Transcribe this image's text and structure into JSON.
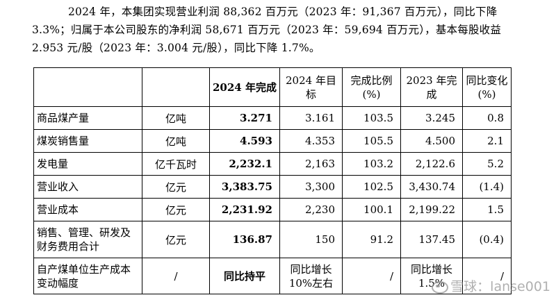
{
  "paragraph": "2024 年，本集团实现营业利润 88,362 百万元（2023 年：91,367 百万元），同比下降 3.3%；归属于本公司股东的净利润 58,671 百万元（2023 年：59,694 百万元），基本每股收益 2.953 元/股（2023 年：3.004 元/股），同比下降 1.7%。",
  "table": {
    "headers": [
      "",
      "",
      "2024 年完成",
      "2024 年目标",
      "完成比例(%)",
      "2023 年完成",
      "同比变化(%)"
    ],
    "rows": [
      {
        "item": "商品煤产量",
        "unit": "亿吨",
        "actual_2024": "3.271",
        "target_2024": "3.161",
        "ratio": "103.5",
        "actual_2023": "3.245",
        "yoy": "0.8"
      },
      {
        "item": "煤炭销售量",
        "unit": "亿吨",
        "actual_2024": "4.593",
        "target_2024": "4.353",
        "ratio": "105.5",
        "actual_2023": "4.500",
        "yoy": "2.1"
      },
      {
        "item": "发电量",
        "unit": "亿千瓦时",
        "actual_2024": "2,232.1",
        "target_2024": "2,163",
        "ratio": "103.2",
        "actual_2023": "2,122.6",
        "yoy": "5.2"
      },
      {
        "item": "营业收入",
        "unit": "亿元",
        "actual_2024": "3,383.75",
        "target_2024": "3,300",
        "ratio": "102.5",
        "actual_2023": "3,430.74",
        "yoy": "(1.4)"
      },
      {
        "item": "营业成本",
        "unit": "亿元",
        "actual_2024": "2,231.92",
        "target_2024": "2,230",
        "ratio": "100.1",
        "actual_2023": "2,199.22",
        "yoy": "1.5"
      },
      {
        "item": "销售、管理、研发及财务费用合计",
        "unit": "亿元",
        "actual_2024": "136.87",
        "target_2024": "150",
        "ratio": "91.2",
        "actual_2023": "137.45",
        "yoy": "(0.4)"
      },
      {
        "item": "自产煤单位生产成本变动幅度",
        "unit": "/",
        "actual_2024": "同比持平",
        "target_2024": "同比增长10%左右",
        "ratio": "/",
        "actual_2023": "同比增长1.5%",
        "yoy": "/"
      }
    ]
  },
  "watermark": "雪球：lanse001"
}
